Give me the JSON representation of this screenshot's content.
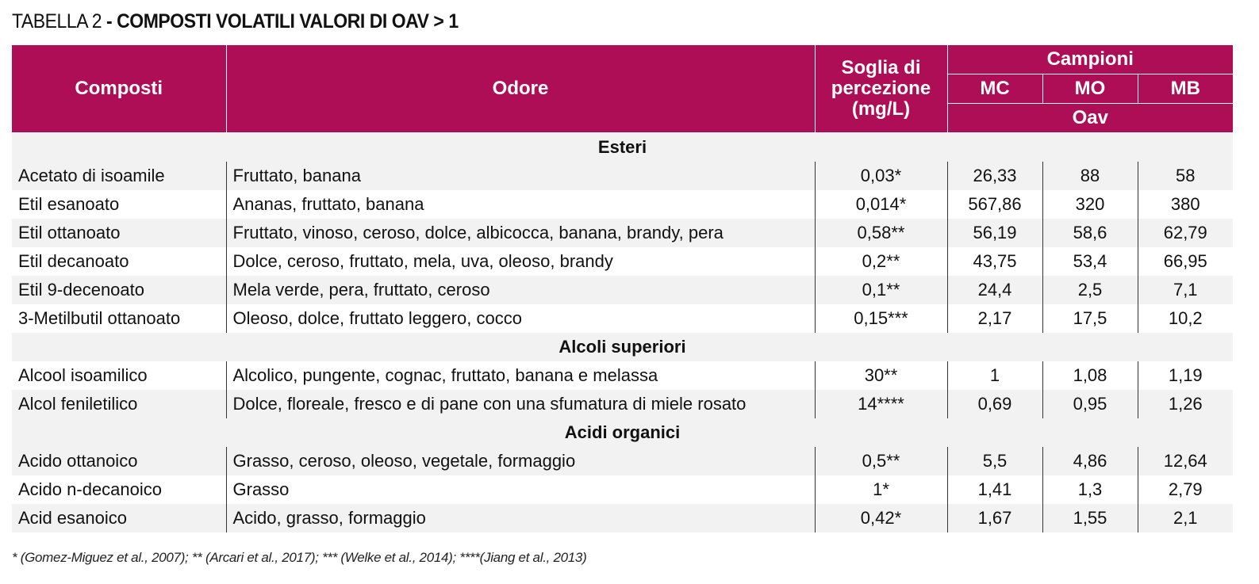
{
  "title": {
    "lead": "TABELLA 2",
    "rest": " - COMPOSTI VOLATILI VALORI DI OAV > 1"
  },
  "colors": {
    "header_bg": "#ad0e55",
    "row_alt": "#f2f2f2"
  },
  "header": {
    "composti": "Composti",
    "odore": "Odore",
    "soglia_line1": "Soglia di",
    "soglia_line2": "percezione",
    "soglia_line3": "(mg/L)",
    "campioni": "Campioni",
    "mc": "MC",
    "mo": "MO",
    "mb": "MB",
    "oav": "Oav"
  },
  "sections": [
    {
      "name": "Esteri",
      "rows": [
        {
          "composto": "Acetato di isoamile",
          "odore": "Fruttato, banana",
          "soglia": "0,03*",
          "mc": "26,33",
          "mo": "88",
          "mb": "58"
        },
        {
          "composto": "Etil esanoato",
          "odore": "Ananas, fruttato, banana",
          "soglia": "0,014*",
          "mc": "567,86",
          "mo": "320",
          "mb": "380"
        },
        {
          "composto": "Etil ottanoato",
          "odore": "Fruttato, vinoso, ceroso, dolce, albicocca, banana, brandy, pera",
          "soglia": "0,58**",
          "mc": "56,19",
          "mo": "58,6",
          "mb": "62,79"
        },
        {
          "composto": "Etil decanoato",
          "odore": "Dolce, ceroso, fruttato, mela, uva, oleoso, brandy",
          "soglia": "0,2**",
          "mc": "43,75",
          "mo": "53,4",
          "mb": "66,95"
        },
        {
          "composto": "Etil 9-decenoato",
          "odore": "Mela verde, pera, fruttato, ceroso",
          "soglia": "0,1**",
          "mc": "24,4",
          "mo": "2,5",
          "mb": "7,1"
        },
        {
          "composto": "3-Metilbutil ottanoato",
          "odore": "Oleoso, dolce, fruttato leggero, cocco",
          "soglia": "0,15***",
          "mc": "2,17",
          "mo": "17,5",
          "mb": "10,2"
        }
      ]
    },
    {
      "name": "Alcoli superiori",
      "rows": [
        {
          "composto": "Alcool isoamilico",
          "odore": "Alcolico, pungente, cognac, fruttato, banana e melassa",
          "soglia": "30**",
          "mc": "1",
          "mo": "1,08",
          "mb": "1,19"
        },
        {
          "composto": "Alcol feniletilico",
          "odore": "Dolce, floreale, fresco e di pane con una sfumatura di miele rosato",
          "soglia": "14****",
          "mc": "0,69",
          "mo": "0,95",
          "mb": "1,26"
        }
      ]
    },
    {
      "name": "Acidi organici",
      "rows": [
        {
          "composto": "Acido ottanoico",
          "odore": "Grasso, ceroso, oleoso, vegetale, formaggio",
          "soglia": "0,5**",
          "mc": "5,5",
          "mo": "4,86",
          "mb": "12,64"
        },
        {
          "composto": "Acido n-decanoico",
          "odore": "Grasso",
          "soglia": "1*",
          "mc": "1,41",
          "mo": "1,3",
          "mb": "2,79"
        },
        {
          "composto": "Acid esanoico",
          "odore": "Acido, grasso, formaggio",
          "soglia": "0,42*",
          "mc": "1,67",
          "mo": "1,55",
          "mb": "2,1"
        }
      ]
    }
  ],
  "footnote": "* (Gomez-Miguez et al., 2007); ** (Arcari et al., 2017); *** (Welke et al., 2014); ****(Jiang et al., 2013)"
}
